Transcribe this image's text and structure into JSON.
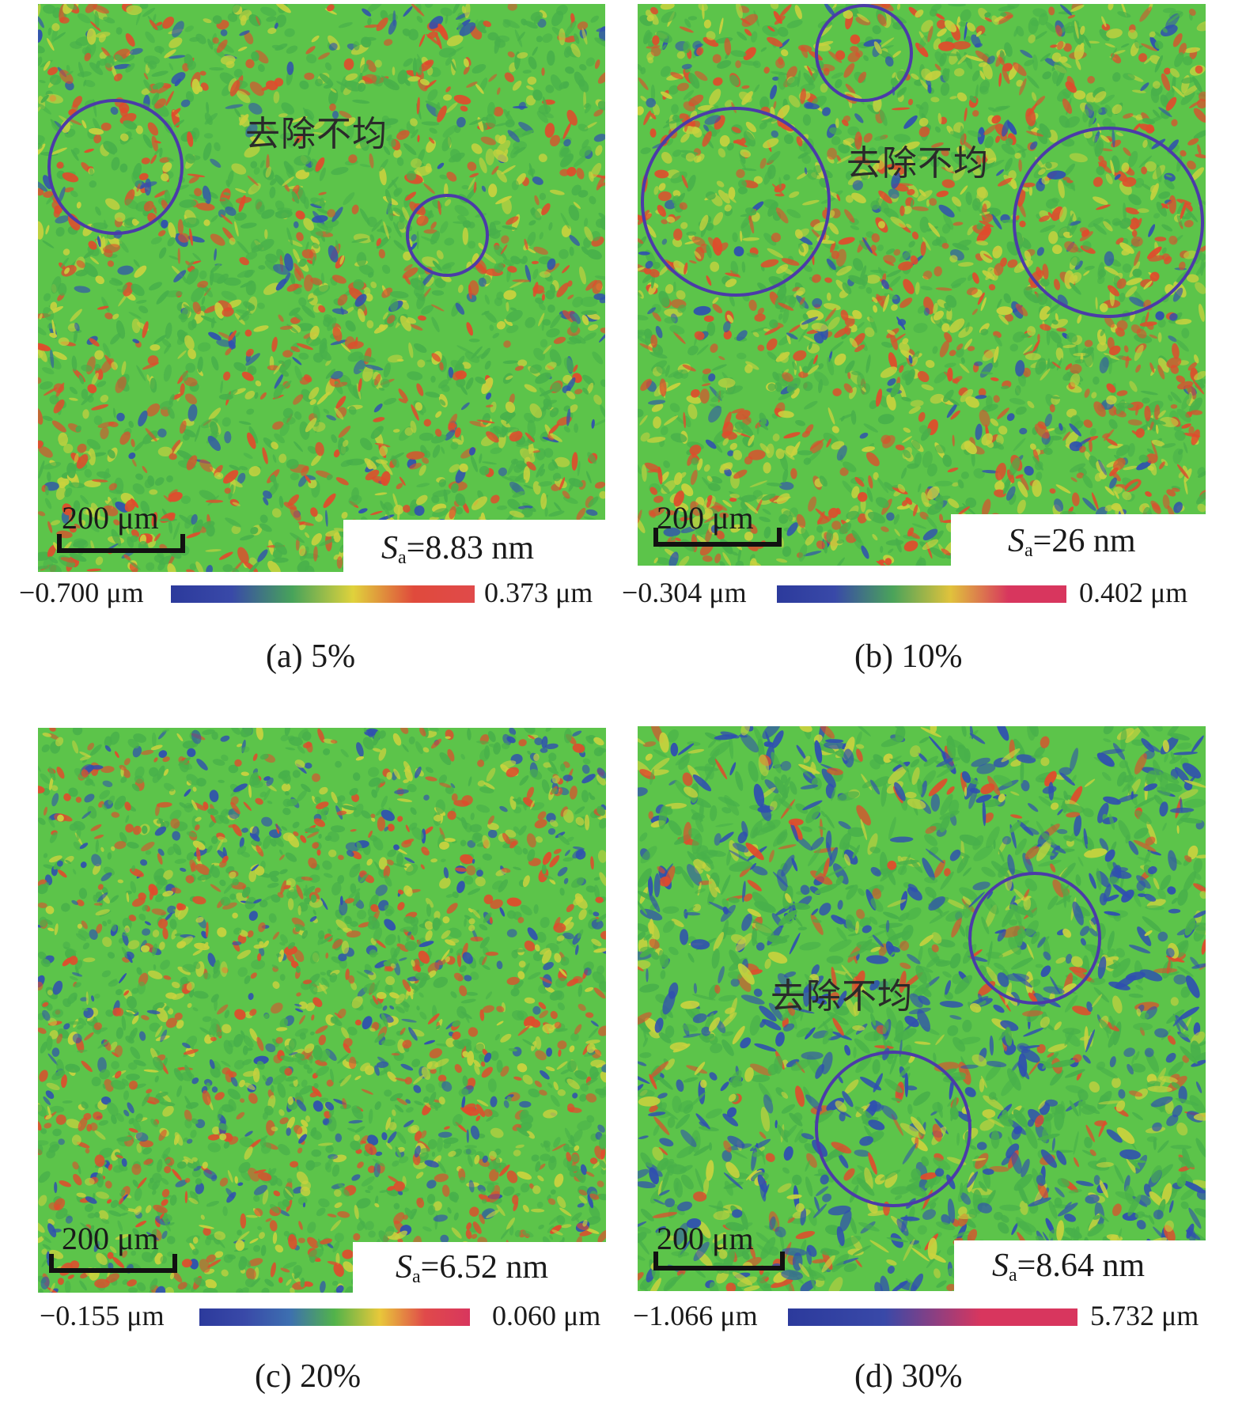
{
  "panels": [
    {
      "caption": "(a) 5%",
      "region_label": "去除不均",
      "sa_symbol": "S",
      "sa_subscript": "a",
      "sa_value": "=8.83 nm",
      "scale_label": "200 μm",
      "colorbar": {
        "min": "−0.700 μm",
        "max": "0.373 μm",
        "colors": [
          "#2c3a9c",
          "#3949a8",
          "#47a35a",
          "#e0d23c",
          "#e04a3c",
          "#e04a4a"
        ]
      }
    },
    {
      "caption": "(b) 10%",
      "region_label": "去除不均",
      "sa_symbol": "S",
      "sa_subscript": "a",
      "sa_value": "=26 nm",
      "scale_label": "200 μm",
      "colorbar": {
        "min": "−0.304 μm",
        "max": "0.402 μm",
        "colors": [
          "#2c3a9c",
          "#3949a8",
          "#4aa35a",
          "#e0c23c",
          "#d8365e",
          "#d8365e"
        ]
      }
    },
    {
      "caption": "(c) 20%",
      "region_label": "",
      "sa_symbol": "S",
      "sa_subscript": "a",
      "sa_value": "=6.52 nm",
      "scale_label": "200 μm",
      "colorbar": {
        "min": "−0.155 μm",
        "max": "0.060 μm",
        "colors": [
          "#2c3a9c",
          "#3949a8",
          "#3d6fb0",
          "#52b34a",
          "#e8c83a",
          "#e04a4a",
          "#d8365e"
        ]
      }
    },
    {
      "caption": "(d) 30%",
      "region_label": "去除不均",
      "sa_symbol": "S",
      "sa_subscript": "a",
      "sa_value": "=8.64 nm",
      "scale_label": "200 μm",
      "colorbar": {
        "min": "−1.066 μm",
        "max": "5.732 μm",
        "colors": [
          "#2c3a9c",
          "#3949a8",
          "#d8365e",
          "#d8365e"
        ]
      }
    }
  ],
  "colors": {
    "surface_green": "#5cc44a",
    "surface_yellow": "#c9d23e",
    "surface_red": "#e04b2c",
    "surface_blue": "#2f4fb0",
    "circle_marker": "#4b3ba8"
  }
}
